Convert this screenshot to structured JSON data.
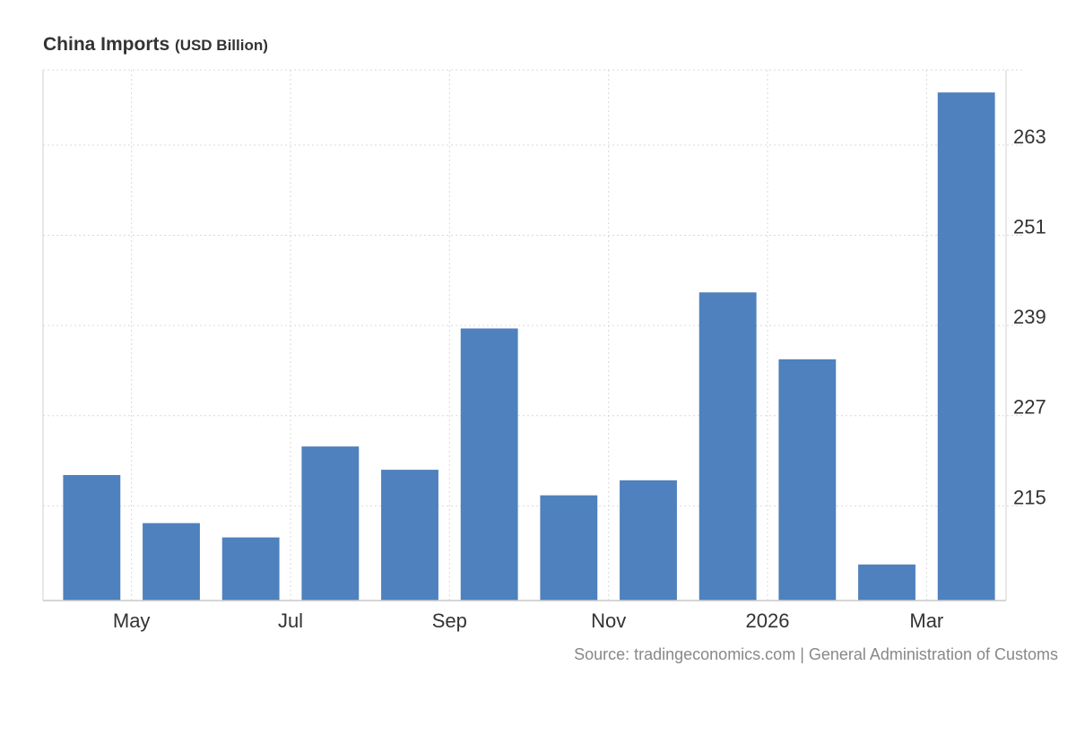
{
  "chart_data": {
    "type": "bar",
    "title": "China Imports",
    "subtitle": "(USD Billion)",
    "categories": [
      "2025-04",
      "2025-05",
      "2025-06",
      "2025-07",
      "2025-08",
      "2025-09",
      "2025-10",
      "2025-11",
      "2025-12",
      "2026-01",
      "2026-02",
      "2026-03"
    ],
    "values": [
      219.1,
      212.7,
      210.8,
      222.9,
      219.8,
      238.6,
      216.4,
      218.4,
      243.4,
      234.5,
      207.2,
      270.0
    ],
    "x_tick_labels": [
      "May",
      "Jul",
      "Sep",
      "Nov",
      "2026",
      "Mar"
    ],
    "x_tick_categories": [
      "2025-05",
      "2025-07",
      "2025-09",
      "2025-11",
      "2026-01",
      "2026-03"
    ],
    "y_ticks": [
      215,
      227,
      239,
      251,
      263
    ],
    "ylim": [
      202.4,
      273.0
    ],
    "xlabel": "",
    "ylabel": "",
    "grid": true,
    "y_axis_side": "right",
    "bar_color": "#4e81bd"
  },
  "source": "Source: tradingeconomics.com | General Administration of Customs"
}
